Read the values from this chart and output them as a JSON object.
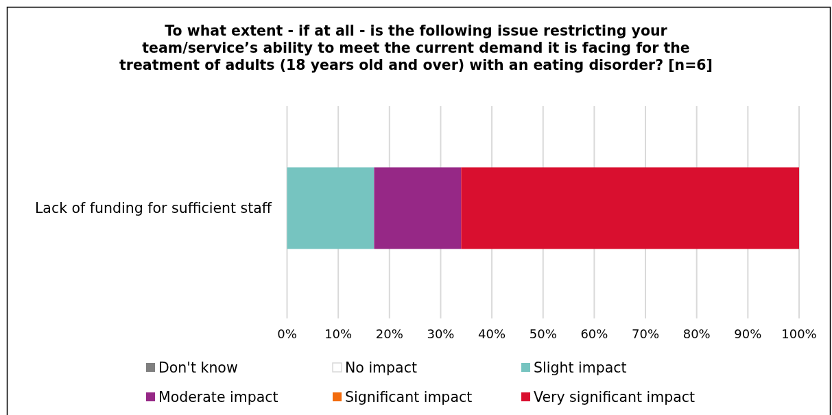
{
  "chart_data": {
    "type": "bar",
    "orientation": "horizontal",
    "stacked": true,
    "title": "To what extent - if at all - is the following issue restricting your team/service’s ability to meet the current demand it is facing for the treatment of adults (18 years old and over) with an eating disorder? [n=6]",
    "categories": [
      "Lack of funding for sufficient staff"
    ],
    "series": [
      {
        "name": "Don't know",
        "color": "#7f7f7f",
        "values": [
          0
        ]
      },
      {
        "name": "No impact",
        "color": "#ffffff",
        "values": [
          0
        ]
      },
      {
        "name": "Slight impact",
        "color": "#76c4c0",
        "values": [
          17
        ]
      },
      {
        "name": "Moderate impact",
        "color": "#962886",
        "values": [
          17
        ]
      },
      {
        "name": "Significant impact",
        "color": "#f26b0d",
        "values": [
          0
        ]
      },
      {
        "name": "Very significant impact",
        "color": "#d90f2f",
        "values": [
          66
        ]
      }
    ],
    "xlim": [
      0,
      100
    ],
    "xticks": [
      {
        "value": 0,
        "label": "0%"
      },
      {
        "value": 10,
        "label": "10%"
      },
      {
        "value": 20,
        "label": "20%"
      },
      {
        "value": 30,
        "label": "30%"
      },
      {
        "value": 40,
        "label": "40%"
      },
      {
        "value": 50,
        "label": "50%"
      },
      {
        "value": 60,
        "label": "60%"
      },
      {
        "value": 70,
        "label": "70%"
      },
      {
        "value": 80,
        "label": "80%"
      },
      {
        "value": 90,
        "label": "90%"
      },
      {
        "value": 100,
        "label": "100%"
      }
    ],
    "grid": "x",
    "legend": "bottom"
  }
}
